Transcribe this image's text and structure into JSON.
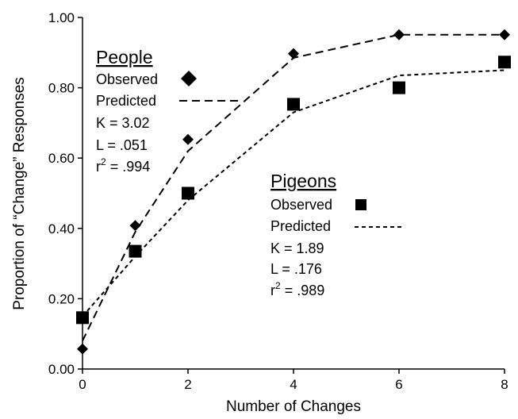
{
  "chart_data": {
    "type": "line",
    "xlabel": "Number of Changes",
    "ylabel": "Proportion of “Change” Responses",
    "xlim": [
      0,
      8
    ],
    "ylim": [
      0,
      1
    ],
    "x_ticks": [
      "0",
      "2",
      "4",
      "6",
      "8"
    ],
    "y_ticks": [
      "0.00",
      "0.20",
      "0.40",
      "0.60",
      "0.80",
      "1.00"
    ],
    "grid": false,
    "series": [
      {
        "name": "People",
        "observed": {
          "marker": "diamond",
          "points": [
            [
              0,
              0.057
            ],
            [
              1,
              0.408
            ],
            [
              2,
              0.653
            ],
            [
              4,
              0.897
            ],
            [
              6,
              0.951
            ],
            [
              8,
              0.951
            ]
          ]
        },
        "predicted": {
          "style": "long-dash",
          "points": [
            [
              0,
              0.08
            ],
            [
              1,
              0.39
            ],
            [
              2,
              0.62
            ],
            [
              4,
              0.885
            ],
            [
              6,
              0.951
            ],
            [
              8,
              0.951
            ]
          ]
        }
      },
      {
        "name": "Pigeons",
        "observed": {
          "marker": "square",
          "points": [
            [
              0,
              0.146
            ],
            [
              1,
              0.335
            ],
            [
              2,
              0.5
            ],
            [
              4,
              0.753
            ],
            [
              6,
              0.8
            ],
            [
              8,
              0.873
            ]
          ]
        },
        "predicted": {
          "style": "short-dash",
          "points": [
            [
              0,
              0.15
            ],
            [
              1,
              0.32
            ],
            [
              2,
              0.48
            ],
            [
              4,
              0.73
            ],
            [
              6,
              0.835
            ],
            [
              8,
              0.85
            ]
          ]
        }
      }
    ],
    "legends": [
      {
        "heading": "People",
        "observed_label": "Observed",
        "predicted_label": "Predicted",
        "k": "K = 3.02",
        "l": "L = .051",
        "r_prefix": "r",
        "r_sup": "2",
        "r_suffix": " = .994",
        "placement": "upper-left"
      },
      {
        "heading": "Pigeons",
        "observed_label": "Observed",
        "predicted_label": "Predicted",
        "k": "K = 1.89",
        "l": "L = .176",
        "r_prefix": "r",
        "r_sup": "2",
        "r_suffix": " = .989",
        "placement": "center-right"
      }
    ]
  }
}
